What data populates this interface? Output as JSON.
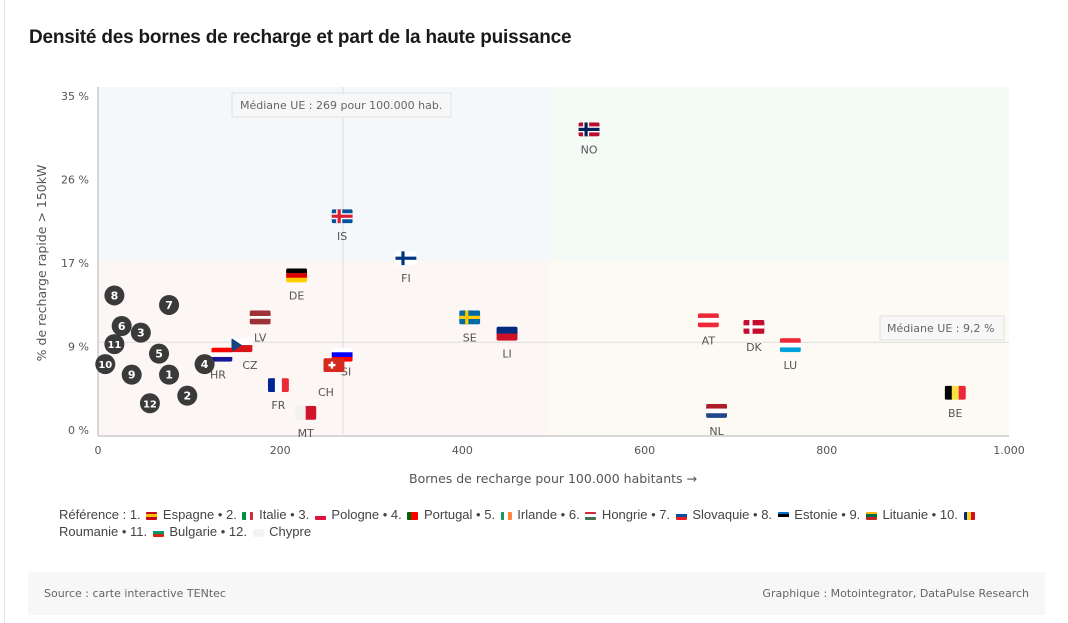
{
  "title": "Densité des bornes de recharge et part de la haute puissance",
  "chart_data": {
    "type": "scatter",
    "xlabel": "Bornes de recharge pour 100.000 habitants →",
    "ylabel": "% de recharge rapide > 150kW",
    "xlim": [
      0,
      1000
    ],
    "ylim": [
      0,
      35
    ],
    "xticks": [
      "0",
      "200",
      "400",
      "600",
      "800",
      "1.000"
    ],
    "xtick_values": [
      0,
      200,
      400,
      600,
      800,
      1000
    ],
    "yticks": [
      "35 %",
      "26 %",
      "17 %",
      "9 %",
      "0 %"
    ],
    "ytick_values": [
      35,
      26.25,
      17.5,
      8.75,
      0
    ],
    "median_x": 269,
    "median_y": 9.2,
    "median_x_label": "Médiane UE : 269 pour 100.000 hab.",
    "median_y_label": "Médiane UE : 9,2 %",
    "countries": [
      {
        "code": "NO",
        "x": 539,
        "y": 31.5,
        "flag": "no"
      },
      {
        "code": "IS",
        "x": 268,
        "y": 22.4,
        "flag": "is"
      },
      {
        "code": "FI",
        "x": 338,
        "y": 18.0,
        "flag": "fi"
      },
      {
        "code": "DE",
        "x": 218,
        "y": 16.2,
        "flag": "de"
      },
      {
        "code": "LV",
        "x": 178,
        "y": 11.8,
        "flag": "lv"
      },
      {
        "code": "SE",
        "x": 408,
        "y": 11.8,
        "flag": "se"
      },
      {
        "code": "LI",
        "x": 449,
        "y": 10.1,
        "flag": "li"
      },
      {
        "code": "AT",
        "x": 670,
        "y": 11.5,
        "flag": "at"
      },
      {
        "code": "DK",
        "x": 720,
        "y": 10.8,
        "flag": "dk"
      },
      {
        "code": "LU",
        "x": 760,
        "y": 8.9,
        "flag": "lu"
      },
      {
        "code": "BE",
        "x": 941,
        "y": 3.9,
        "flag": "be"
      },
      {
        "code": "NL",
        "x": 679,
        "y": 2.0,
        "flag": "nl"
      },
      {
        "code": "CZ",
        "x": 158,
        "y": 8.9,
        "flag": "cz"
      },
      {
        "code": "HR",
        "x": 136,
        "y": 7.9,
        "flag": "hr"
      },
      {
        "code": "SI",
        "x": 268,
        "y": 7.9,
        "flag": "si"
      },
      {
        "code": "CH",
        "x": 259,
        "y": 6.8,
        "flag": "ch"
      },
      {
        "code": "FR",
        "x": 198,
        "y": 4.7,
        "flag": "fr"
      },
      {
        "code": "MT",
        "x": 228,
        "y": 1.8,
        "flag": "mt"
      }
    ],
    "numbered": [
      {
        "n": "1",
        "name": "Espagne",
        "x": 78,
        "y": 5.8,
        "colors": [
          "#c60b1e",
          "#ffc400",
          "#c60b1e"
        ]
      },
      {
        "n": "2",
        "name": "Italie",
        "x": 98,
        "y": 3.6,
        "colors": [
          "#009246",
          "#ffffff",
          "#ce2b37"
        ],
        "vertical": true
      },
      {
        "n": "3",
        "name": "Pologne",
        "x": 47,
        "y": 10.2,
        "colors": [
          "#ffffff",
          "#dc143c"
        ]
      },
      {
        "n": "4",
        "name": "Portugal",
        "x": 117,
        "y": 6.9,
        "colors": [
          "#006600",
          "#ff0000",
          "#ff0000"
        ],
        "vertical": true
      },
      {
        "n": "5",
        "name": "Irlande",
        "x": 67,
        "y": 8.0,
        "colors": [
          "#169b62",
          "#ffffff",
          "#ff883e"
        ],
        "vertical": true
      },
      {
        "n": "6",
        "name": "Hongrie",
        "x": 26,
        "y": 10.9,
        "colors": [
          "#ce2939",
          "#ffffff",
          "#477050"
        ]
      },
      {
        "n": "7",
        "name": "Slovaquie",
        "x": 78,
        "y": 13.1,
        "colors": [
          "#ffffff",
          "#0b4ea2",
          "#ee1c25"
        ]
      },
      {
        "n": "8",
        "name": "Estonie",
        "x": 18,
        "y": 14.1,
        "colors": [
          "#0072ce",
          "#000000",
          "#ffffff"
        ]
      },
      {
        "n": "9",
        "name": "Lituanie",
        "x": 37,
        "y": 5.8,
        "colors": [
          "#fdb913",
          "#006a44",
          "#c1272d"
        ]
      },
      {
        "n": "10",
        "name": "Roumanie",
        "x": 8,
        "y": 6.9,
        "colors": [
          "#002b7f",
          "#fcd116",
          "#ce1126"
        ],
        "vertical": true
      },
      {
        "n": "11",
        "name": "Bulgarie",
        "x": 18,
        "y": 9.0,
        "colors": [
          "#ffffff",
          "#00966e",
          "#d62612"
        ]
      },
      {
        "n": "12",
        "name": "Chypre",
        "x": 57,
        "y": 2.8,
        "colors": [
          "#f4f4f4",
          "#f4f4f4"
        ]
      }
    ]
  },
  "reference_label": "Référence :",
  "source": "Source : carte interactive TENtec",
  "credit": "Graphique : Motointegrator, DataPulse Research"
}
